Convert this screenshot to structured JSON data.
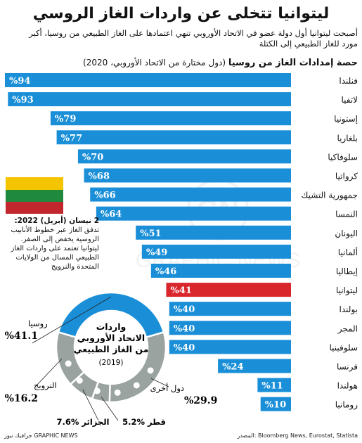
{
  "title": "ليتوانيا تتخلى عن واردات الغاز الروسي",
  "subtitle": "أصبحت ليتوانيا أول دولة عضو في الاتحاد الأوروبي تنهي اعتمادها على الغاز الطبيعي من روسيا، أكبر مورد للغاز الطبيعي إلى الكتلة",
  "chart_heading": {
    "main": "حصة إمدادات الغاز من روسيا",
    "sub": "(دول مختارة من الاتحاد الأوروبي، 2020)"
  },
  "note": {
    "date": "2 نيسان (أبريل) 2022:",
    "text": "تدفق الغاز عبر خطوط الأنابيب الروسية يخفض إلى الصفر. ليتوانيا تعتمد على واردات الغاز الطبيعي المسال من الولايات المتحدة والنرويج"
  },
  "donut_center": {
    "title": "واردات الاتحاد الأوروبي من الغاز الطبيعي",
    "year": "(2019)"
  },
  "source": "المصدر: Bloomberg News, Eurostat, Statista",
  "credit": "جرافيك نيوز GRAPHIC NEWS",
  "watermark": "GRAPHIC NEWS",
  "colors": {
    "bar": "#1a8fd8",
    "highlight": "#d9262d",
    "donut_blue": "#1a8fd8",
    "donut_grey": "#9aa39f",
    "flag_yellow": "#f5c400",
    "flag_green": "#1f8a3e",
    "flag_red": "#c1272d"
  },
  "chart_data": [
    {
      "type": "bar",
      "orientation": "horizontal",
      "title": "حصة إمدادات الغاز من روسيا",
      "subtitle": "(دول مختارة من الاتحاد الأوروبي، 2020)",
      "unit": "%",
      "categories": [
        "فنلندا",
        "لاتفيا",
        "إستونيا",
        "بلغاريا",
        "سلوفاكيا",
        "كرواتيا",
        "جمهورية التشيك",
        "النمسا",
        "اليونان",
        "ألمانيا",
        "إيطاليا",
        "ليتوانيا",
        "بولندا",
        "المجر",
        "سلوفينيا",
        "فرنسا",
        "هولندا",
        "رومانيا"
      ],
      "values": [
        94,
        93,
        79,
        77,
        70,
        68,
        66,
        64,
        51,
        49,
        46,
        41,
        40,
        40,
        40,
        24,
        11,
        10
      ],
      "labels": [
        "%94",
        "%93",
        "%79",
        "%77",
        "%70",
        "%68",
        "%66",
        "%64",
        "%51",
        "%49",
        "%46",
        "%41",
        "%40",
        "%40",
        "%40",
        "%24",
        "%11",
        "%10"
      ],
      "highlight": "ليتوانيا",
      "xlim": [
        0,
        100
      ]
    },
    {
      "type": "pie",
      "style": "donut",
      "title": "واردات الاتحاد الأوروبي من الغاز الطبيعي",
      "subtitle": "(2019)",
      "unit": "%",
      "slices": [
        {
          "name": "روسيا",
          "value": 41.1,
          "label": "%41.1",
          "color": "#1a8fd8"
        },
        {
          "name": "دول أخرى",
          "value": 29.9,
          "label": "%29.9",
          "color": "#9aa39f"
        },
        {
          "name": "قطر",
          "value": 5.2,
          "label": "%5.2",
          "color": "#9aa39f"
        },
        {
          "name": "الجزائر",
          "value": 7.6,
          "label": "%7.6",
          "color": "#9aa39f"
        },
        {
          "name": "النرويج",
          "value": 16.2,
          "label": "%16.2",
          "color": "#9aa39f"
        }
      ]
    }
  ]
}
